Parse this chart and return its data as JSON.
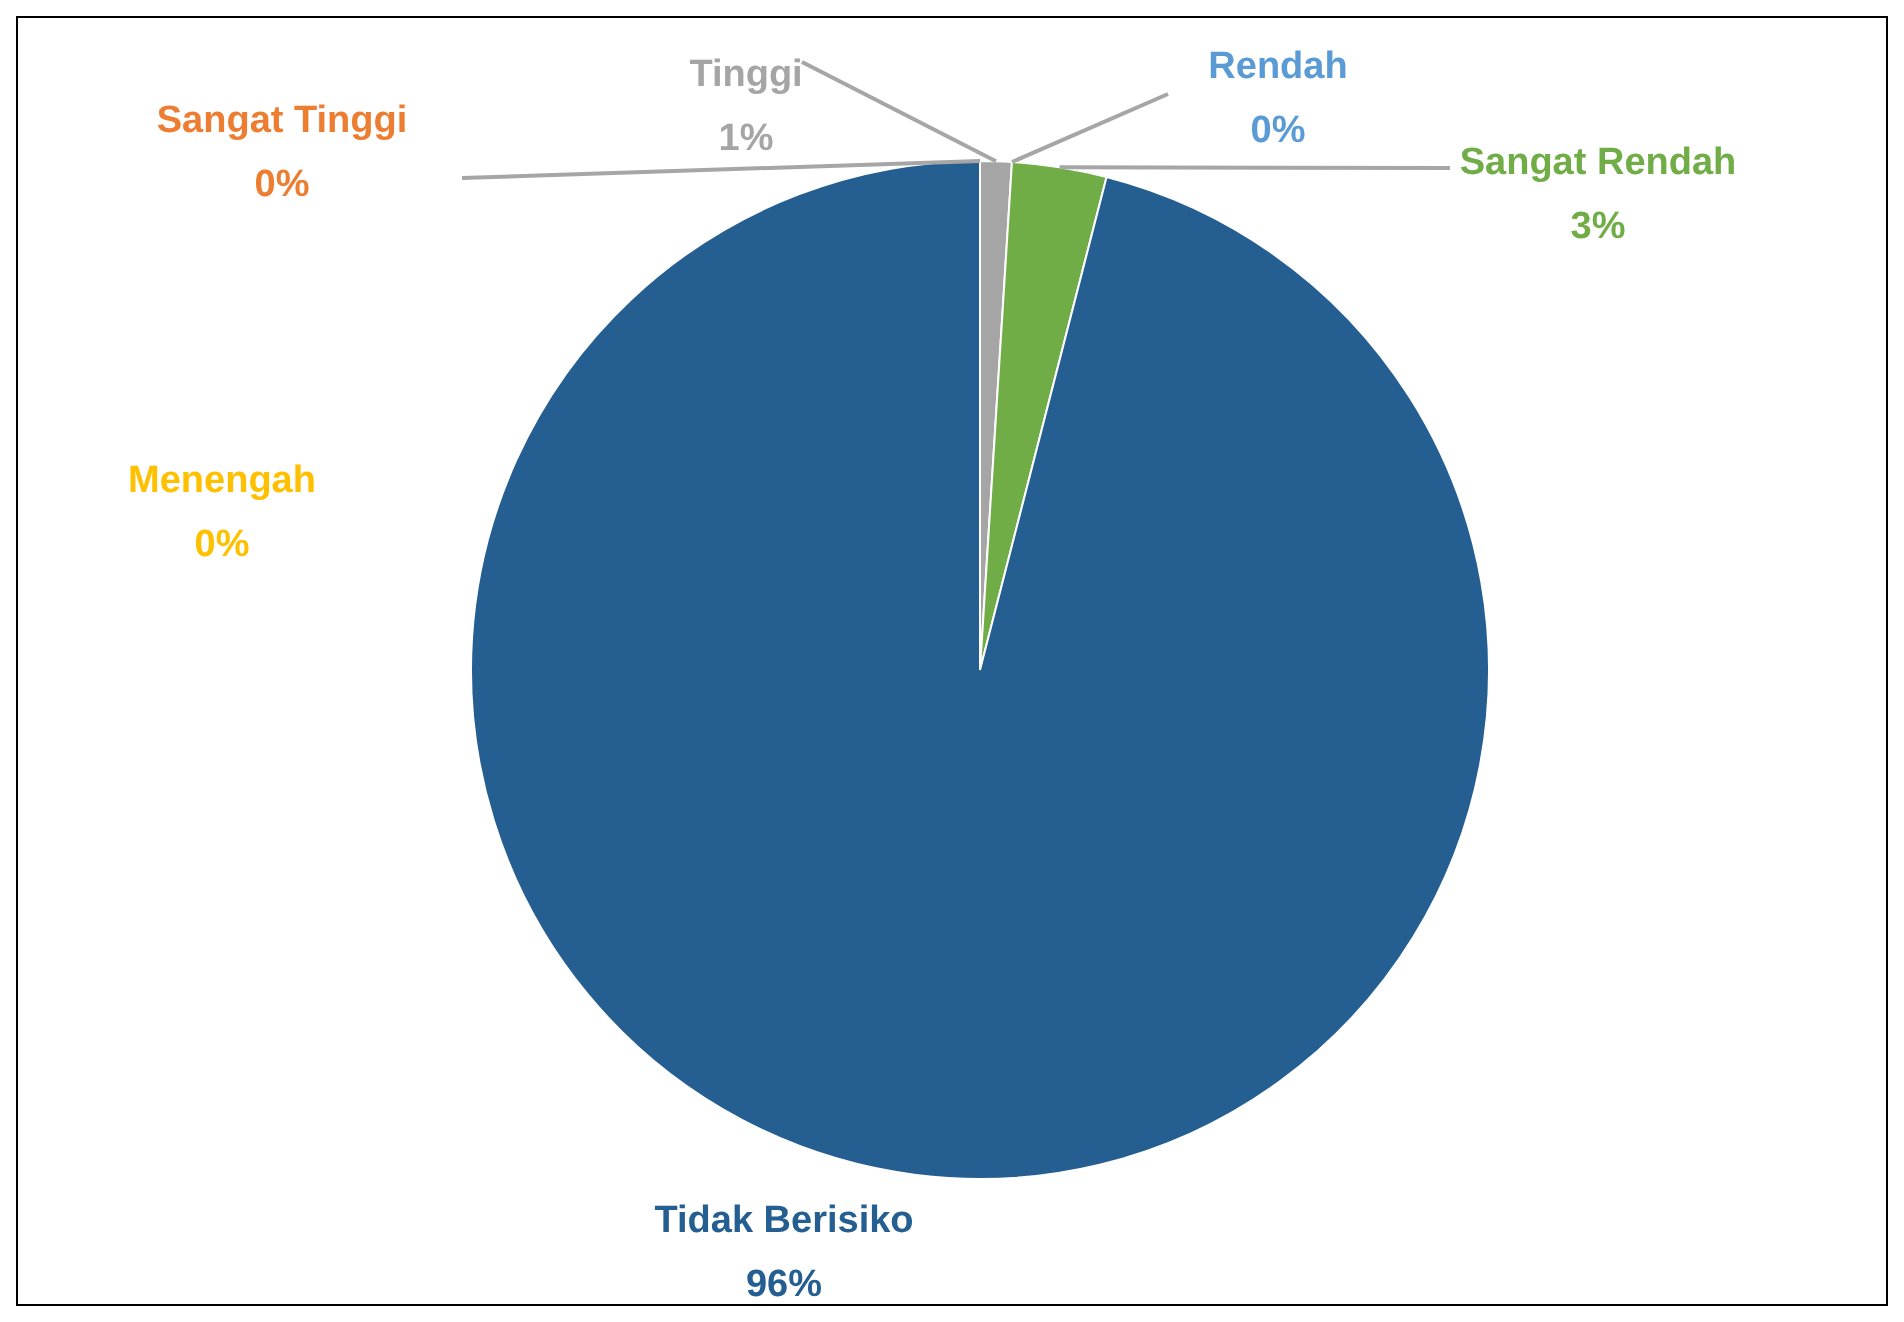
{
  "chart_data": {
    "type": "pie",
    "categories": [
      "Tinggi",
      "Rendah",
      "Sangat Rendah",
      "Tidak Berisiko",
      "Menengah",
      "Sangat Tinggi"
    ],
    "values": [
      1,
      0,
      3,
      96,
      0,
      0
    ],
    "colors": [
      "#a5a5a5",
      "#5b9bd5",
      "#70ad47",
      "#255e91",
      "#ffc000",
      "#ed7d31"
    ],
    "value_labels": [
      "1%",
      "0%",
      "3%",
      "96%",
      "0%",
      "0%"
    ],
    "legend": false
  }
}
